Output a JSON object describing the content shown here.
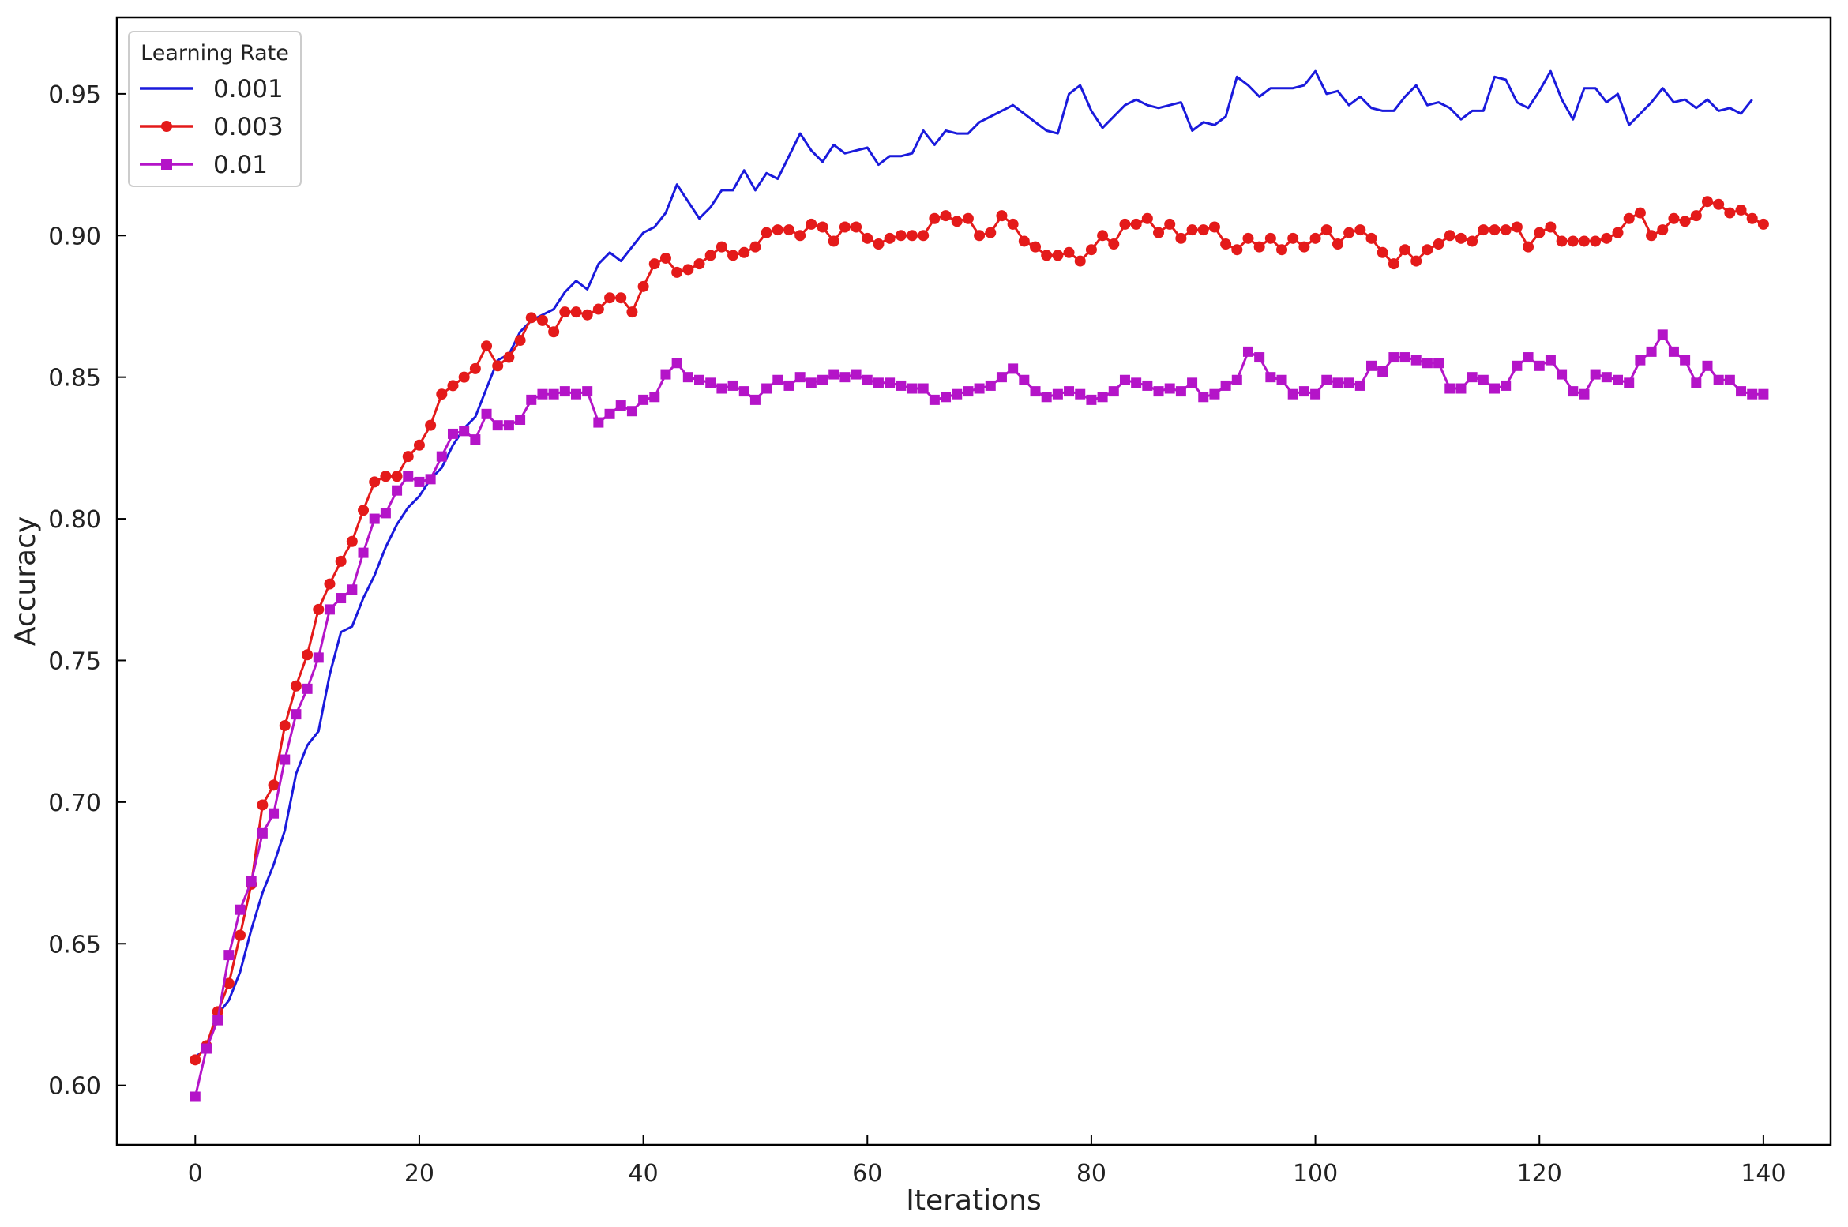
{
  "chart_data": {
    "type": "line",
    "title": "",
    "xlabel": "Iterations",
    "ylabel": "Accuracy",
    "xlim": [
      -7,
      146
    ],
    "ylim": [
      0.579,
      0.977
    ],
    "xticks": [
      0,
      20,
      40,
      60,
      80,
      100,
      120,
      140
    ],
    "yticks": [
      0.6,
      0.65,
      0.7,
      0.75,
      0.8,
      0.85,
      0.9,
      0.95
    ],
    "grid": false,
    "legend": {
      "title": "Learning Rate",
      "position": "top-left"
    },
    "series": [
      {
        "name": "0.001",
        "color": "#1a1adc",
        "marker": "none",
        "y": [
          0.61,
          0.613,
          0.625,
          0.63,
          0.64,
          0.655,
          0.668,
          0.678,
          0.69,
          0.71,
          0.72,
          0.725,
          0.745,
          0.76,
          0.762,
          0.772,
          0.78,
          0.79,
          0.798,
          0.804,
          0.808,
          0.814,
          0.818,
          0.826,
          0.832,
          0.836,
          0.846,
          0.856,
          0.858,
          0.866,
          0.87,
          0.872,
          0.874,
          0.88,
          0.884,
          0.881,
          0.89,
          0.894,
          0.891,
          0.896,
          0.901,
          0.903,
          0.908,
          0.918,
          0.912,
          0.906,
          0.91,
          0.916,
          0.916,
          0.923,
          0.916,
          0.922,
          0.92,
          0.928,
          0.936,
          0.93,
          0.926,
          0.932,
          0.929,
          0.93,
          0.931,
          0.925,
          0.928,
          0.928,
          0.929,
          0.937,
          0.932,
          0.937,
          0.936,
          0.936,
          0.94,
          0.942,
          0.944,
          0.946,
          0.943,
          0.94,
          0.937,
          0.936,
          0.95,
          0.953,
          0.944,
          0.938,
          0.942,
          0.946,
          0.948,
          0.946,
          0.945,
          0.946,
          0.947,
          0.937,
          0.94,
          0.939,
          0.942,
          0.956,
          0.953,
          0.949,
          0.952,
          0.952,
          0.952,
          0.953,
          0.958,
          0.95,
          0.951,
          0.946,
          0.949,
          0.945,
          0.944,
          0.944,
          0.949,
          0.953,
          0.946,
          0.947,
          0.945,
          0.941,
          0.944,
          0.944,
          0.956,
          0.955,
          0.947,
          0.945,
          0.951,
          0.958,
          0.948,
          0.941,
          0.952,
          0.952,
          0.947,
          0.95,
          0.939,
          0.943,
          0.947,
          0.952,
          0.947,
          0.948,
          0.945,
          0.948,
          0.944,
          0.945,
          0.943,
          0.948
        ]
      },
      {
        "name": "0.003",
        "color": "#e41a1a",
        "marker": "circle",
        "y": [
          0.609,
          0.614,
          0.626,
          0.636,
          0.653,
          0.671,
          0.699,
          0.706,
          0.727,
          0.741,
          0.752,
          0.768,
          0.777,
          0.785,
          0.792,
          0.803,
          0.813,
          0.815,
          0.815,
          0.822,
          0.826,
          0.833,
          0.844,
          0.847,
          0.85,
          0.853,
          0.861,
          0.854,
          0.857,
          0.863,
          0.871,
          0.87,
          0.866,
          0.873,
          0.873,
          0.872,
          0.874,
          0.878,
          0.878,
          0.873,
          0.882,
          0.89,
          0.892,
          0.887,
          0.888,
          0.89,
          0.893,
          0.896,
          0.893,
          0.894,
          0.896,
          0.901,
          0.902,
          0.902,
          0.9,
          0.904,
          0.903,
          0.898,
          0.903,
          0.903,
          0.899,
          0.897,
          0.899,
          0.9,
          0.9,
          0.9,
          0.906,
          0.907,
          0.905,
          0.906,
          0.9,
          0.901,
          0.907,
          0.904,
          0.898,
          0.896,
          0.893,
          0.893,
          0.894,
          0.891,
          0.895,
          0.9,
          0.897,
          0.904,
          0.904,
          0.906,
          0.901,
          0.904,
          0.899,
          0.902,
          0.902,
          0.903,
          0.897,
          0.895,
          0.899,
          0.896,
          0.899,
          0.895,
          0.899,
          0.896,
          0.899,
          0.902,
          0.897,
          0.901,
          0.902,
          0.899,
          0.894,
          0.89,
          0.895,
          0.891,
          0.895,
          0.897,
          0.9,
          0.899,
          0.898,
          0.902,
          0.902,
          0.902,
          0.903,
          0.896,
          0.901,
          0.903,
          0.898,
          0.898,
          0.898,
          0.898,
          0.899,
          0.901,
          0.906,
          0.908,
          0.9,
          0.902,
          0.906,
          0.905,
          0.907,
          0.912,
          0.911,
          0.908,
          0.909,
          0.906,
          0.904
        ]
      },
      {
        "name": "0.01",
        "color": "#b414c8",
        "marker": "square",
        "y": [
          0.596,
          0.613,
          0.623,
          0.646,
          0.662,
          0.672,
          0.689,
          0.696,
          0.715,
          0.731,
          0.74,
          0.751,
          0.768,
          0.772,
          0.775,
          0.788,
          0.8,
          0.802,
          0.81,
          0.815,
          0.813,
          0.814,
          0.822,
          0.83,
          0.831,
          0.828,
          0.837,
          0.833,
          0.833,
          0.835,
          0.842,
          0.844,
          0.844,
          0.845,
          0.844,
          0.845,
          0.834,
          0.837,
          0.84,
          0.838,
          0.842,
          0.843,
          0.851,
          0.855,
          0.85,
          0.849,
          0.848,
          0.846,
          0.847,
          0.845,
          0.842,
          0.846,
          0.849,
          0.847,
          0.85,
          0.848,
          0.849,
          0.851,
          0.85,
          0.851,
          0.849,
          0.848,
          0.848,
          0.847,
          0.846,
          0.846,
          0.842,
          0.843,
          0.844,
          0.845,
          0.846,
          0.847,
          0.85,
          0.853,
          0.849,
          0.845,
          0.843,
          0.844,
          0.845,
          0.844,
          0.842,
          0.843,
          0.845,
          0.849,
          0.848,
          0.847,
          0.845,
          0.846,
          0.845,
          0.848,
          0.843,
          0.844,
          0.847,
          0.849,
          0.859,
          0.857,
          0.85,
          0.849,
          0.844,
          0.845,
          0.844,
          0.849,
          0.848,
          0.848,
          0.847,
          0.854,
          0.852,
          0.857,
          0.857,
          0.856,
          0.855,
          0.855,
          0.846,
          0.846,
          0.85,
          0.849,
          0.846,
          0.847,
          0.854,
          0.857,
          0.854,
          0.856,
          0.851,
          0.845,
          0.844,
          0.851,
          0.85,
          0.849,
          0.848,
          0.856,
          0.859,
          0.865,
          0.859,
          0.856,
          0.848,
          0.854,
          0.849,
          0.849,
          0.845,
          0.844,
          0.844
        ]
      }
    ]
  }
}
